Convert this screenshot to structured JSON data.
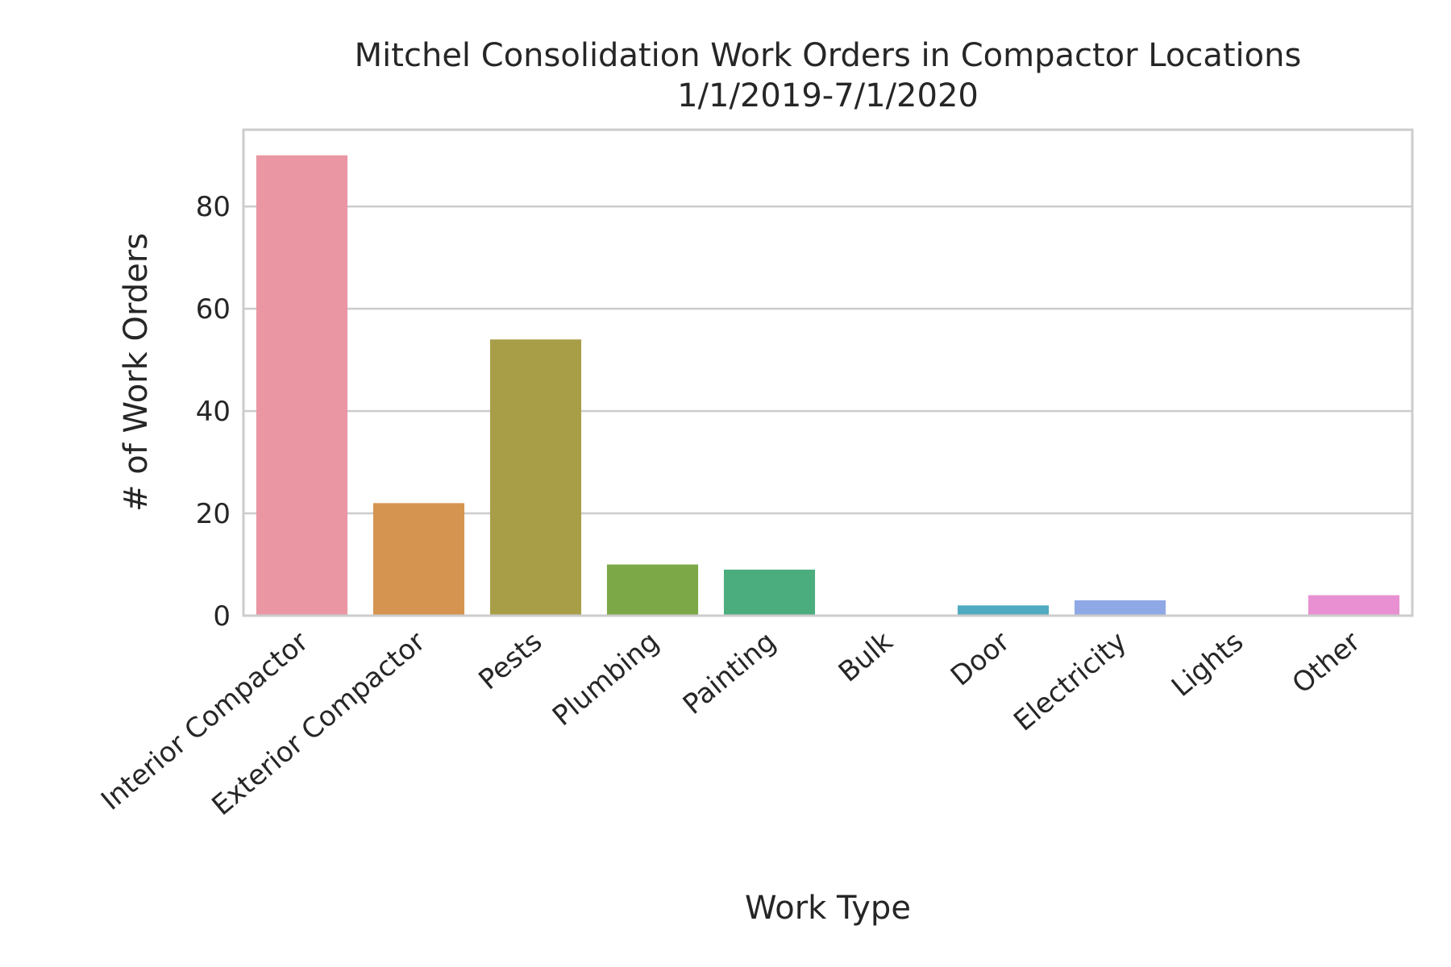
{
  "chart_data": {
    "type": "bar",
    "title": "Mitchel Consolidation Work Orders in Compactor Locations",
    "subtitle": "1/1/2019-7/1/2020",
    "xlabel": "Work Type",
    "ylabel": "# of Work Orders",
    "ylim": [
      0,
      95
    ],
    "yticks": [
      0,
      20,
      40,
      60,
      80
    ],
    "grid": true,
    "categories": [
      "Interior Compactor",
      "Exterior Compactor",
      "Pests",
      "Plumbing",
      "Painting",
      "Bulk",
      "Door",
      "Electricity",
      "Lights",
      "Other"
    ],
    "values": [
      90,
      22,
      54,
      10,
      9,
      0,
      2,
      3,
      0,
      4
    ],
    "colors": [
      "#ea96a3",
      "#d5944f",
      "#a99e48",
      "#7ca847",
      "#4bad7d",
      "#4dab9e",
      "#50aac0",
      "#8fa9e6",
      "#c99be6",
      "#e890d1"
    ]
  }
}
